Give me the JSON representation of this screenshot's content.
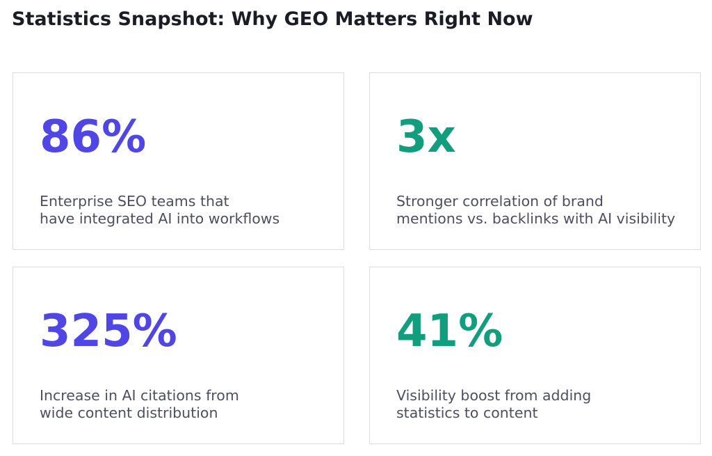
{
  "page": {
    "title": "Statistics Snapshot: Why GEO Matters Right Now"
  },
  "colors": {
    "accent_purple": "#4f46e5",
    "accent_green": "#119e7f",
    "title_text": "#1a1c26",
    "body_text": "#4b4f60",
    "card_border": "#dcdcdf"
  },
  "stats": [
    {
      "value": "86%",
      "color": "purple",
      "description_lines": [
        "Enterprise SEO teams that",
        "have integrated AI into workflows"
      ]
    },
    {
      "value": "3x",
      "color": "green",
      "description_lines": [
        "Stronger correlation of brand",
        "mentions vs. backlinks with AI visibility"
      ]
    },
    {
      "value": "325%",
      "color": "purple",
      "description_lines": [
        "Increase in AI citations from",
        "wide content distribution"
      ]
    },
    {
      "value": "41%",
      "color": "green",
      "description_lines": [
        "Visibility boost from adding",
        "statistics to content"
      ]
    }
  ]
}
